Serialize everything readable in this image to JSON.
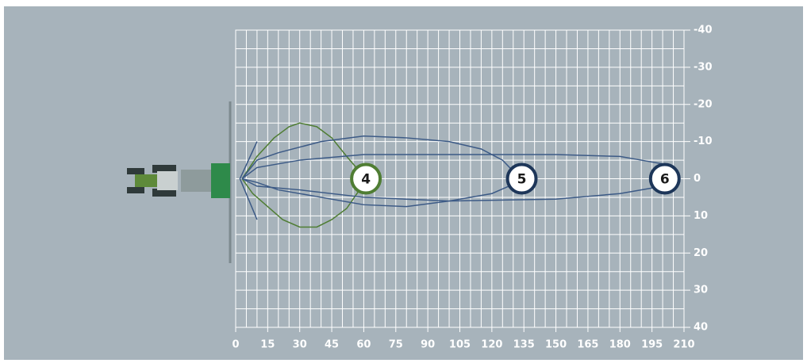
{
  "chart_data": {
    "type": "spread",
    "xlim": [
      0,
      210
    ],
    "xticks": [
      0,
      15,
      30,
      45,
      60,
      75,
      90,
      105,
      120,
      135,
      150,
      165,
      180,
      195,
      210
    ],
    "ylim": [
      -40,
      40
    ],
    "yticks": [
      -40,
      -30,
      -20,
      -10,
      0,
      10,
      20,
      30,
      40
    ],
    "grid": true,
    "minor_step": 5,
    "series": [
      {
        "color": "#4f7d33",
        "x": [
          3,
          10,
          18,
          25,
          30,
          38,
          45,
          52,
          58,
          59,
          58,
          52,
          45,
          38,
          30,
          22,
          14,
          8,
          3
        ],
        "y": [
          0,
          -6,
          -11,
          -14,
          -15,
          -14,
          -11,
          -6,
          -2,
          0,
          3,
          8,
          11,
          13,
          13,
          11,
          7,
          4,
          0
        ]
      },
      {
        "color": "#3c5a86",
        "x": [
          3,
          10,
          20,
          40,
          60,
          80,
          100,
          115,
          125,
          130,
          132,
          128,
          120,
          100,
          80,
          60,
          40,
          20,
          10,
          3
        ],
        "y": [
          0,
          -5,
          -7,
          -10,
          -11.5,
          -11,
          -10,
          -8,
          -5,
          -2,
          0,
          2,
          4,
          6,
          7.5,
          7,
          5,
          3,
          1,
          0
        ]
      },
      {
        "color": "#3c5a86",
        "x": [
          3,
          10,
          30,
          60,
          100,
          150,
          180,
          190,
          200,
          205,
          206,
          200,
          180,
          150,
          100,
          60,
          30,
          10,
          3
        ],
        "y": [
          0,
          -3,
          -5,
          -6.5,
          -6.5,
          -6.5,
          -6,
          -5,
          -4,
          -3,
          0,
          2,
          4,
          5.5,
          6,
          5,
          3,
          2,
          0
        ]
      }
    ],
    "markers": [
      {
        "label": "4",
        "x": 61,
        "y": 0,
        "color": "#4f7d33"
      },
      {
        "label": "5",
        "x": 134,
        "y": 0,
        "color": "#1d3659"
      },
      {
        "label": "6",
        "x": 201,
        "y": 0,
        "color": "#1d3659"
      }
    ]
  }
}
